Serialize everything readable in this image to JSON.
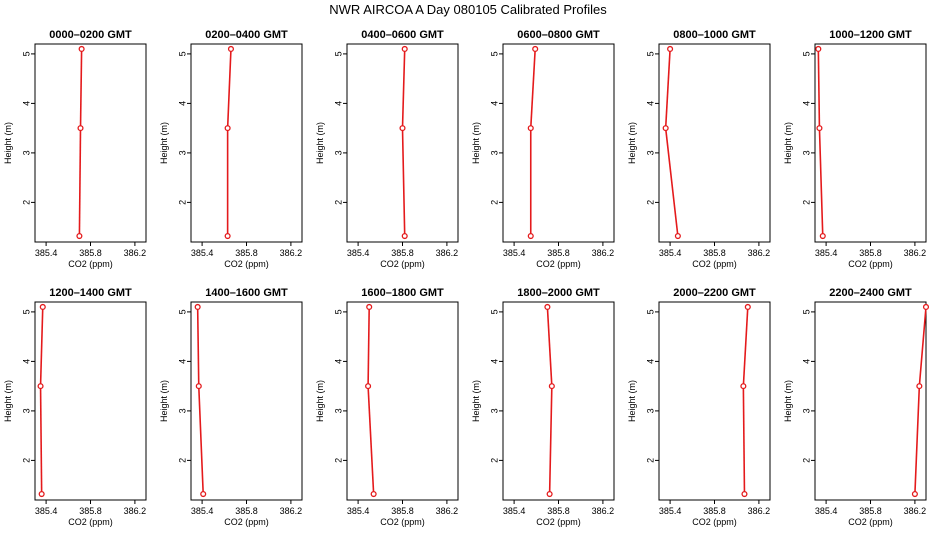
{
  "figure": {
    "title": "NWR AIRCOA A  Day 080105  Calibrated Profiles"
  },
  "style": {
    "line_color": "#e41a1c",
    "marker_color": "#e41a1c",
    "axis_color": "#000000",
    "background": "#ffffff"
  },
  "chart_data": [
    {
      "type": "line",
      "title": "0000–0200 GMT",
      "xlabel": "CO2 (ppm)",
      "ylabel": "Height (m)",
      "xlim": [
        385.3,
        386.3
      ],
      "ylim": [
        1.2,
        5.2
      ],
      "xticks": [
        "385.4",
        "385.8",
        "386.2"
      ],
      "yticks": [
        "2",
        "3",
        "4",
        "5"
      ],
      "series": [
        {
          "points": [
            {
              "x": 385.7,
              "y": 1.32
            },
            {
              "x": 385.71,
              "y": 3.5
            },
            {
              "x": 385.72,
              "y": 5.1
            }
          ]
        }
      ]
    },
    {
      "type": "line",
      "title": "0200–0400 GMT",
      "xlabel": "CO2 (ppm)",
      "ylabel": "Height (m)",
      "xlim": [
        385.3,
        386.3
      ],
      "ylim": [
        1.2,
        5.2
      ],
      "xticks": [
        "385.4",
        "385.8",
        "386.2"
      ],
      "yticks": [
        "2",
        "3",
        "4",
        "5"
      ],
      "series": [
        {
          "points": [
            {
              "x": 385.63,
              "y": 1.32
            },
            {
              "x": 385.63,
              "y": 3.5
            },
            {
              "x": 385.66,
              "y": 5.1
            }
          ]
        }
      ]
    },
    {
      "type": "line",
      "title": "0400–0600 GMT",
      "xlabel": "CO2 (ppm)",
      "ylabel": "Height (m)",
      "xlim": [
        385.3,
        386.3
      ],
      "ylim": [
        1.2,
        5.2
      ],
      "xticks": [
        "385.4",
        "385.8",
        "386.2"
      ],
      "yticks": [
        "2",
        "3",
        "4",
        "5"
      ],
      "series": [
        {
          "points": [
            {
              "x": 385.82,
              "y": 1.32
            },
            {
              "x": 385.8,
              "y": 3.5
            },
            {
              "x": 385.82,
              "y": 5.1
            }
          ]
        }
      ]
    },
    {
      "type": "line",
      "title": "0600–0800 GMT",
      "xlabel": "CO2 (ppm)",
      "ylabel": "Height (m)",
      "xlim": [
        385.3,
        386.3
      ],
      "ylim": [
        1.2,
        5.2
      ],
      "xticks": [
        "385.4",
        "385.8",
        "386.2"
      ],
      "yticks": [
        "2",
        "3",
        "4",
        "5"
      ],
      "series": [
        {
          "points": [
            {
              "x": 385.55,
              "y": 1.32
            },
            {
              "x": 385.55,
              "y": 3.5
            },
            {
              "x": 385.59,
              "y": 5.1
            }
          ]
        }
      ]
    },
    {
      "type": "line",
      "title": "0800–1000 GMT",
      "xlabel": "CO2 (ppm)",
      "ylabel": "Height (m)",
      "xlim": [
        385.3,
        386.3
      ],
      "ylim": [
        1.2,
        5.2
      ],
      "xticks": [
        "385.4",
        "385.8",
        "386.2"
      ],
      "yticks": [
        "2",
        "3",
        "4",
        "5"
      ],
      "series": [
        {
          "points": [
            {
              "x": 385.47,
              "y": 1.32
            },
            {
              "x": 385.36,
              "y": 3.5
            },
            {
              "x": 385.4,
              "y": 5.1
            }
          ]
        }
      ]
    },
    {
      "type": "line",
      "title": "1000–1200 GMT",
      "xlabel": "CO2 (ppm)",
      "ylabel": "Height (m)",
      "xlim": [
        385.3,
        386.3
      ],
      "ylim": [
        1.2,
        5.2
      ],
      "xticks": [
        "385.4",
        "385.8",
        "386.2"
      ],
      "yticks": [
        "2",
        "3",
        "4",
        "5"
      ],
      "series": [
        {
          "points": [
            {
              "x": 385.37,
              "y": 1.32
            },
            {
              "x": 385.34,
              "y": 3.5
            },
            {
              "x": 385.33,
              "y": 5.1
            }
          ]
        }
      ]
    },
    {
      "type": "line",
      "title": "1200–1400 GMT",
      "xlabel": "CO2 (ppm)",
      "ylabel": "Height (m)",
      "xlim": [
        385.3,
        386.3
      ],
      "ylim": [
        1.2,
        5.2
      ],
      "xticks": [
        "385.4",
        "385.8",
        "386.2"
      ],
      "yticks": [
        "2",
        "3",
        "4",
        "5"
      ],
      "series": [
        {
          "points": [
            {
              "x": 385.36,
              "y": 1.32
            },
            {
              "x": 385.35,
              "y": 3.5
            },
            {
              "x": 385.37,
              "y": 5.1
            }
          ]
        }
      ]
    },
    {
      "type": "line",
      "title": "1400–1600 GMT",
      "xlabel": "CO2 (ppm)",
      "ylabel": "Height (m)",
      "xlim": [
        385.3,
        386.3
      ],
      "ylim": [
        1.2,
        5.2
      ],
      "xticks": [
        "385.4",
        "385.8",
        "386.2"
      ],
      "yticks": [
        "2",
        "3",
        "4",
        "5"
      ],
      "series": [
        {
          "points": [
            {
              "x": 385.41,
              "y": 1.32
            },
            {
              "x": 385.37,
              "y": 3.5
            },
            {
              "x": 385.36,
              "y": 5.1
            }
          ]
        }
      ]
    },
    {
      "type": "line",
      "title": "1600–1800 GMT",
      "xlabel": "CO2 (ppm)",
      "ylabel": "Height (m)",
      "xlim": [
        385.3,
        386.3
      ],
      "ylim": [
        1.2,
        5.2
      ],
      "xticks": [
        "385.4",
        "385.8",
        "386.2"
      ],
      "yticks": [
        "2",
        "3",
        "4",
        "5"
      ],
      "series": [
        {
          "points": [
            {
              "x": 385.54,
              "y": 1.32
            },
            {
              "x": 385.49,
              "y": 3.5
            },
            {
              "x": 385.5,
              "y": 5.1
            }
          ]
        }
      ]
    },
    {
      "type": "line",
      "title": "1800–2000 GMT",
      "xlabel": "CO2 (ppm)",
      "ylabel": "Height (m)",
      "xlim": [
        385.3,
        386.3
      ],
      "ylim": [
        1.2,
        5.2
      ],
      "xticks": [
        "385.4",
        "385.8",
        "386.2"
      ],
      "yticks": [
        "2",
        "3",
        "4",
        "5"
      ],
      "series": [
        {
          "points": [
            {
              "x": 385.72,
              "y": 1.32
            },
            {
              "x": 385.74,
              "y": 3.5
            },
            {
              "x": 385.7,
              "y": 5.1
            }
          ]
        }
      ]
    },
    {
      "type": "line",
      "title": "2000–2200 GMT",
      "xlabel": "CO2 (ppm)",
      "ylabel": "Height (m)",
      "xlim": [
        385.3,
        386.3
      ],
      "ylim": [
        1.2,
        5.2
      ],
      "xticks": [
        "385.4",
        "385.8",
        "386.2"
      ],
      "yticks": [
        "2",
        "3",
        "4",
        "5"
      ],
      "series": [
        {
          "points": [
            {
              "x": 386.07,
              "y": 1.32
            },
            {
              "x": 386.06,
              "y": 3.5
            },
            {
              "x": 386.1,
              "y": 5.1
            }
          ]
        }
      ]
    },
    {
      "type": "line",
      "title": "2200–2400 GMT",
      "xlabel": "CO2 (ppm)",
      "ylabel": "Height (m)",
      "xlim": [
        385.3,
        386.3
      ],
      "ylim": [
        1.2,
        5.2
      ],
      "xticks": [
        "385.4",
        "385.8",
        "386.2"
      ],
      "yticks": [
        "2",
        "3",
        "4",
        "5"
      ],
      "series": [
        {
          "points": [
            {
              "x": 386.2,
              "y": 1.32
            },
            {
              "x": 386.24,
              "y": 3.5
            },
            {
              "x": 386.3,
              "y": 5.1
            }
          ]
        }
      ]
    }
  ]
}
